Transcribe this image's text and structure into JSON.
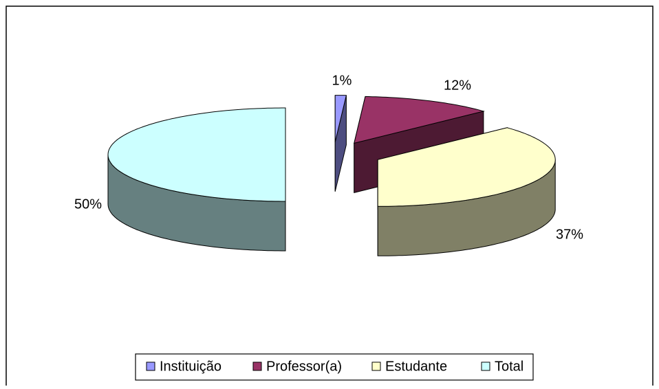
{
  "chart_data": {
    "type": "pie3d",
    "categories": [
      "Instituição",
      "Professor(a)",
      "Estudante",
      "Total"
    ],
    "series": [
      {
        "values": [
          1,
          12,
          37,
          50
        ],
        "value_labels": [
          "1%",
          "12%",
          "37%",
          "50%"
        ],
        "colors": [
          "#9999ff",
          "#993366",
          "#ffffcc",
          "#ccffff"
        ]
      }
    ],
    "legend": "bottom"
  }
}
